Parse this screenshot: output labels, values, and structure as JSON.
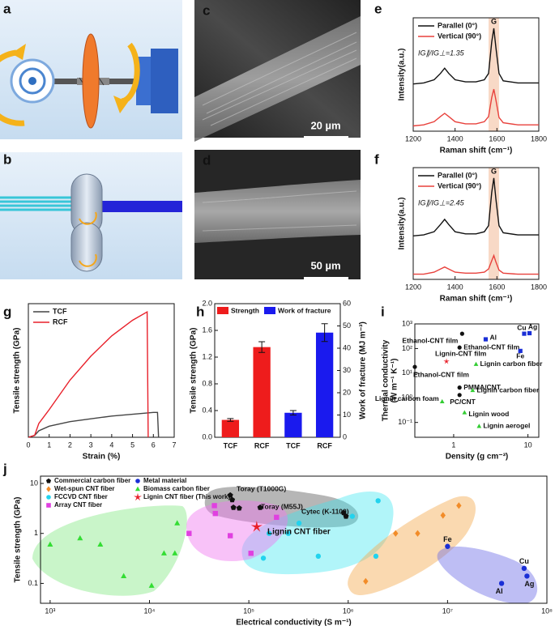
{
  "panel_labels": [
    "a",
    "b",
    "c",
    "d",
    "e",
    "f",
    "g",
    "h",
    "i",
    "j"
  ],
  "sem_scale_bars": [
    "20 µm",
    "50 µm"
  ],
  "chart_data": [
    {
      "type": "line",
      "xlabel": "Raman shift (cm⁻¹)",
      "ylabel": "Intensity(a.u.)",
      "annotation": "IG∥/IG⊥=1.35",
      "peak_label": "G",
      "x": [
        1200,
        1250,
        1300,
        1330,
        1350,
        1370,
        1400,
        1450,
        1500,
        1540,
        1560,
        1575,
        1585,
        1595,
        1610,
        1630,
        1700,
        1800
      ],
      "highlight": [
        1560,
        1610
      ],
      "series": [
        {
          "name": "Parallel (0°)",
          "color": "#111111",
          "values": [
            0.45,
            0.46,
            0.49,
            0.55,
            0.6,
            0.55,
            0.49,
            0.47,
            0.47,
            0.49,
            0.55,
            0.85,
            0.98,
            0.8,
            0.55,
            0.48,
            0.46,
            0.46
          ]
        },
        {
          "name": "Vertical (90°)",
          "color": "#e8413c",
          "values": [
            0.05,
            0.06,
            0.09,
            0.14,
            0.17,
            0.14,
            0.09,
            0.07,
            0.07,
            0.09,
            0.14,
            0.32,
            0.4,
            0.3,
            0.13,
            0.08,
            0.06,
            0.06
          ]
        }
      ],
      "xlim": [
        1200,
        1800
      ],
      "xticks": [
        1200,
        1400,
        1600,
        1800
      ],
      "ylim": [
        0,
        1.08
      ]
    },
    {
      "type": "line",
      "xlabel": "Raman shift (cm⁻¹)",
      "ylabel": "Intensity(a.u.)",
      "annotation": "IG∥/IG⊥=2.45",
      "peak_label": "G",
      "x": [
        1200,
        1250,
        1300,
        1330,
        1350,
        1370,
        1400,
        1450,
        1500,
        1540,
        1560,
        1575,
        1585,
        1595,
        1610,
        1630,
        1700,
        1800
      ],
      "highlight": [
        1560,
        1610
      ],
      "series": [
        {
          "name": "Parallel (0°)",
          "color": "#111111",
          "values": [
            0.42,
            0.43,
            0.46,
            0.53,
            0.58,
            0.53,
            0.46,
            0.44,
            0.44,
            0.46,
            0.52,
            0.84,
            0.98,
            0.78,
            0.52,
            0.45,
            0.43,
            0.43
          ]
        },
        {
          "name": "Vertical (90°)",
          "color": "#e8413c",
          "values": [
            0.05,
            0.05,
            0.07,
            0.1,
            0.12,
            0.1,
            0.07,
            0.06,
            0.06,
            0.07,
            0.1,
            0.18,
            0.23,
            0.17,
            0.09,
            0.06,
            0.05,
            0.05
          ]
        }
      ],
      "xlim": [
        1200,
        1800
      ],
      "xticks": [
        1200,
        1400,
        1600,
        1800
      ],
      "ylim": [
        0,
        1.08
      ]
    },
    {
      "type": "line",
      "xlabel": "Strain (%)",
      "ylabel": "Tensile strength (GPa)",
      "series": [
        {
          "name": "TCF",
          "color": "#444444",
          "x": [
            0,
            0.3,
            0.5,
            1,
            2,
            3,
            4,
            5,
            6,
            6.2,
            6.25
          ],
          "values": [
            0,
            0.02,
            0.07,
            0.12,
            0.17,
            0.2,
            0.23,
            0.25,
            0.27,
            0.27,
            0
          ]
        },
        {
          "name": "RCF",
          "color": "#e8202a",
          "x": [
            0,
            0.3,
            0.5,
            1,
            2,
            3,
            4,
            5,
            5.7,
            5.75
          ],
          "values": [
            0,
            0.02,
            0.15,
            0.3,
            0.62,
            0.88,
            1.1,
            1.27,
            1.36,
            0
          ]
        }
      ],
      "xlim": [
        0,
        7
      ],
      "xticks": [
        0,
        1,
        2,
        3,
        4,
        5,
        6,
        7
      ],
      "ylim": [
        0,
        1.45
      ]
    },
    {
      "type": "bar",
      "ylabel": "Tensile strength (GPa)",
      "y2label": "Work of fracture (MJ m⁻³)",
      "categories": [
        "TCF",
        "RCF",
        "TCF",
        "RCF"
      ],
      "series": [
        {
          "name": "Strength",
          "color": "#ee1c1c",
          "values": [
            0.26,
            1.35,
            null,
            null
          ],
          "errors": [
            0.02,
            0.08,
            null,
            null
          ]
        },
        {
          "name": "Work of fracture",
          "color": "#1a1aee",
          "axis": "y2",
          "values": [
            null,
            null,
            11,
            47
          ],
          "errors": [
            null,
            null,
            1,
            4
          ]
        }
      ],
      "ylim": [
        0,
        2
      ],
      "yticks": [
        {
          "value": 0,
          "label": "0.0"
        },
        0.4,
        0.8,
        1.2,
        1.6,
        {
          "value": 2,
          "label": "2.0"
        }
      ],
      "y2lim": [
        0,
        60
      ],
      "y2ticks": [
        0,
        10,
        20,
        30,
        40,
        50,
        60
      ]
    },
    {
      "type": "scatter",
      "xlabel": "Density (g cm⁻³)",
      "ylabel": [
        "Thermal conductivity",
        "(W m⁻¹ K⁻¹)"
      ],
      "xlog": true,
      "ylog": true,
      "xlim": [
        0.3,
        14
      ],
      "xticks": [
        1,
        10
      ],
      "ylim": [
        0.025,
        1000
      ],
      "yticks": [
        {
          "value": 0.1,
          "label": "10⁻¹"
        },
        {
          "value": 1,
          "label": "10⁰"
        },
        {
          "value": 10,
          "label": "10¹"
        },
        {
          "value": 100,
          "label": "10²"
        },
        {
          "value": 1000,
          "label": "10³"
        }
      ],
      "series": [
        {
          "color": "#111111",
          "marker": "circle",
          "points": [
            {
              "label": "Ethanol-CNT film",
              "x": 1.3,
              "y": 400
            },
            {
              "label": "Ethanol-CNT film",
              "x": 1.2,
              "y": 110
            },
            {
              "label": "Ethanol-CNT film",
              "x": 0.3,
              "y": 18
            },
            {
              "label": "PMMA/CNT",
              "x": 1.2,
              "y": 2.6
            },
            {
              "label": "PC/CNT",
              "x": 1.2,
              "y": 1.3
            }
          ]
        },
        {
          "color": "#e8202a",
          "marker": "star",
          "points": [
            {
              "label": "Lignin-CNT film",
              "x": 0.8,
              "y": 30
            }
          ]
        },
        {
          "color": "#1a2fd6",
          "marker": "square",
          "points": [
            {
              "label": "Al",
              "x": 2.7,
              "y": 237
            },
            {
              "label": "Cu",
              "x": 8.9,
              "y": 400
            },
            {
              "label": "Ag",
              "x": 10.5,
              "y": 420
            },
            {
              "label": "Fe",
              "x": 7.9,
              "y": 80
            }
          ]
        },
        {
          "color": "#33cc33",
          "marker": "triangle",
          "points": [
            {
              "label": "Lignin carbon fiber",
              "x": 2,
              "y": 23
            },
            {
              "label": "Lignin carbon fiber",
              "x": 1.8,
              "y": 2
            },
            {
              "label": "Lignin carbon foam",
              "x": 0.7,
              "y": 0.7
            },
            {
              "label": "Lignin wood",
              "x": 1.4,
              "y": 0.25
            },
            {
              "label": "Lignin aerogel",
              "x": 2.2,
              "y": 0.07
            }
          ]
        }
      ]
    },
    {
      "type": "scatter",
      "xlabel": "Electrical conductivity (S m⁻¹)",
      "ylabel": "Tensile strength (GPa)",
      "xlog": true,
      "ylog": true,
      "xlim": [
        800,
        100000000
      ],
      "xticks": [
        {
          "value": 1000,
          "label": "10³"
        },
        {
          "value": 10000,
          "label": "10⁴"
        },
        {
          "value": 100000,
          "label": "10⁵"
        },
        {
          "value": 1000000,
          "label": "10⁶"
        },
        {
          "value": 10000000,
          "label": "10⁷"
        },
        {
          "value": 100000000,
          "label": "10⁸"
        }
      ],
      "ylim": [
        0.04,
        14
      ],
      "yticks": [
        0.1,
        1,
        10
      ],
      "annotations": [
        "Toray (T1000G)",
        "Toray (M55J)",
        "Cytec (K-1100)",
        "Lignin CNT fiber"
      ],
      "series": [
        {
          "name": "Commercial carbon fiber",
          "color": "#111111",
          "marker": "pentagon",
          "x": [
            65000,
            68000,
            70000,
            80000,
            130000,
            900000,
            950000
          ],
          "values": [
            5.8,
            4.7,
            3.3,
            3.2,
            3.3,
            2.6,
            2.2
          ]
        },
        {
          "name": "Wet-spun CNT fiber",
          "color": "#f28c28",
          "marker": "diamond",
          "x": [
            1500000,
            3000000,
            5000000,
            9000000,
            13000000
          ],
          "values": [
            0.11,
            1,
            1,
            2.3,
            3.6
          ]
        },
        {
          "name": "FCCVD CNT fiber",
          "color": "#22d3ee",
          "marker": "circle",
          "x": [
            140000,
            160000,
            250000,
            320000,
            500000,
            1100000,
            1900000,
            2000000
          ],
          "values": [
            0.32,
            1,
            1,
            1.6,
            0.35,
            2.2,
            0.35,
            4.5
          ]
        },
        {
          "name": "Array CNT fiber",
          "color": "#e040e0",
          "marker": "square",
          "x": [
            25000,
            45000,
            46000,
            65000,
            105000,
            190000
          ],
          "values": [
            1,
            3.6,
            2.5,
            0.9,
            0.4,
            2.1
          ]
        },
        {
          "name": "Metal material",
          "color": "#1a2fd6",
          "marker": "circle",
          "x": [
            10000000,
            35000000,
            59000000,
            63000000
          ],
          "values": [
            0.55,
            0.1,
            0.2,
            0.14
          ],
          "point_labels": [
            "Fe",
            "Al",
            "Cu",
            "Ag"
          ]
        },
        {
          "name": "Biomass carbon fiber",
          "color": "#33dd33",
          "marker": "triangle",
          "x": [
            1000,
            2000,
            3200,
            5500,
            10500,
            14000,
            18000,
            19000
          ],
          "values": [
            0.6,
            0.8,
            0.6,
            0.14,
            0.09,
            0.4,
            0.4,
            1.6
          ]
        },
        {
          "name": "Lignin CNT fiber (This work)",
          "color": "#e8202a",
          "marker": "star",
          "x": [
            120000
          ],
          "values": [
            1.35
          ]
        }
      ]
    }
  ]
}
